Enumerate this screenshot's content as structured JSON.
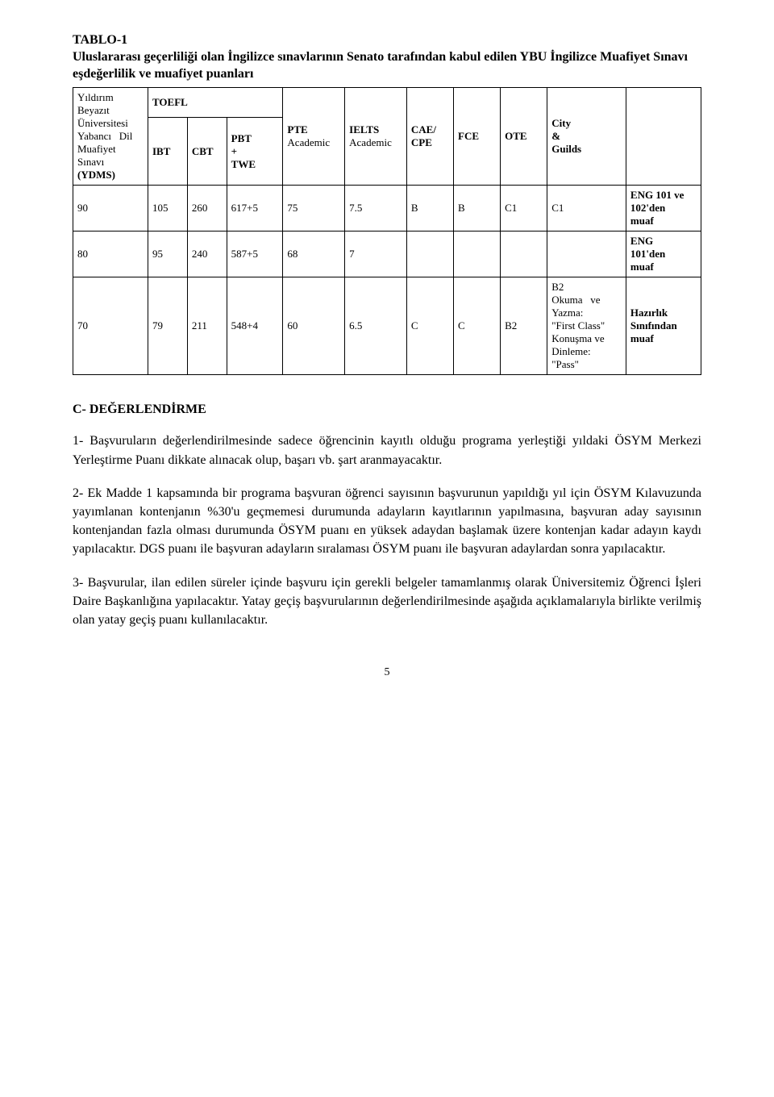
{
  "title": {
    "line1": "TABLO-1",
    "line2": "Uluslararası geçerliliği olan İngilizce sınavlarının Senato tarafından kabul edilen YBU İngilizce Muafiyet Sınavı eşdeğerlilik ve muafiyet puanları"
  },
  "headers": {
    "ydms": "Yıldırım Beyazıt Üniversitesi Yabancı Dil Muafiyet Sınavı (YDMS)",
    "toefl": "TOEFL",
    "pte": "PTE",
    "pte_sub": "Academic",
    "ielts": "IELTS",
    "ielts_sub": "Academic",
    "cae": "CAE/ CPE",
    "fce": "FCE",
    "ote": "OTE",
    "city": "City & Guilds",
    "ibt": "IBT",
    "cbt": "CBT",
    "pbt": "PBT + TWE"
  },
  "rows": [
    {
      "ydms": "90",
      "ibt": "105",
      "cbt": "260",
      "pbt": "617+5",
      "pte": "75",
      "ielts": "7.5",
      "cae": "B",
      "fce": "B",
      "ote": "C1",
      "city": "C1",
      "note": "ENG 101 ve 102'den muaf"
    },
    {
      "ydms": "80",
      "ibt": "95",
      "cbt": "240",
      "pbt": "587+5",
      "pte": "68",
      "ielts": "7",
      "cae": "",
      "fce": "",
      "ote": "",
      "city": "",
      "note": "ENG 101'den muaf"
    },
    {
      "ydms": "70",
      "ibt": "79",
      "cbt": "211",
      "pbt": "548+4",
      "pte": "60",
      "ielts": "6.5",
      "cae": "C",
      "fce": "C",
      "ote": "B2",
      "city": "B2 Okuma ve Yazma: \"First Class\" Konuşma ve Dinleme: \"Pass\"",
      "note": "Hazırlık Sınıfından muaf"
    }
  ],
  "sectionC": {
    "heading": "C- DEĞERLENDİRME",
    "p1": "1- Başvuruların değerlendirilmesinde sadece öğrencinin kayıtlı olduğu programa yerleştiği yıldaki ÖSYM Merkezi Yerleştirme Puanı dikkate alınacak olup, başarı vb. şart aranmayacaktır.",
    "p2": "2- Ek Madde 1 kapsamında bir programa başvuran öğrenci sayısının başvurunun yapıldığı yıl için ÖSYM Kılavuzunda yayımlanan kontenjanın %30'u geçmemesi durumunda adayların kayıtlarının yapılmasına, başvuran aday sayısının kontenjandan fazla olması durumunda ÖSYM puanı en yüksek adaydan başlamak üzere kontenjan kadar adayın kaydı yapılacaktır. DGS puanı ile başvuran adayların sıralaması ÖSYM puanı ile başvuran adaylardan sonra yapılacaktır.",
    "p3": "3- Başvurular, ilan edilen süreler içinde başvuru için gerekli belgeler tamamlanmış olarak Üniversitemiz Öğrenci İşleri Daire Başkanlığına yapılacaktır. Yatay geçiş başvurularının değerlendirilmesinde aşağıda açıklamalarıyla birlikte verilmiş olan yatay geçiş puanı kullanılacaktır."
  },
  "page_number": "5"
}
